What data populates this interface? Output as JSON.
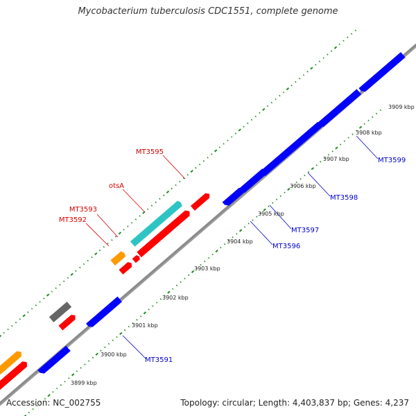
{
  "title": "Mycobacterium tuberculosis CDC1551, complete genome",
  "footer": {
    "accession": "Accession: NC_002755",
    "summary": "Topology: circular; Length: 4,403,837 bp; Genes: 4,237"
  },
  "colors": {
    "backbone": "#8c8c8c",
    "tick": "#1f8a1f",
    "label_red": "#d40000",
    "label_blue": "#0000cc",
    "gene_red": "#ff0000",
    "gene_blue": "#0000ff",
    "gene_cyan": "#2ec4c4",
    "gene_orange": "#ff9900",
    "gene_gray": "#666666"
  },
  "kbp_labels": [
    "3899 kbp",
    "3900 kbp",
    "3901 kbp",
    "3902 kbp",
    "3903 kbp",
    "3904 kbp",
    "3905 kbp",
    "3906 kbp",
    "3907 kbp",
    "3908 kbp",
    "3909 kbp"
  ],
  "gene_labels_top": [
    "MT3595",
    "otsA",
    "MT3593",
    "MT3592"
  ],
  "gene_labels_bottom": [
    "MT3591",
    "MT3596",
    "MT3597",
    "MT3598",
    "MT3599"
  ]
}
